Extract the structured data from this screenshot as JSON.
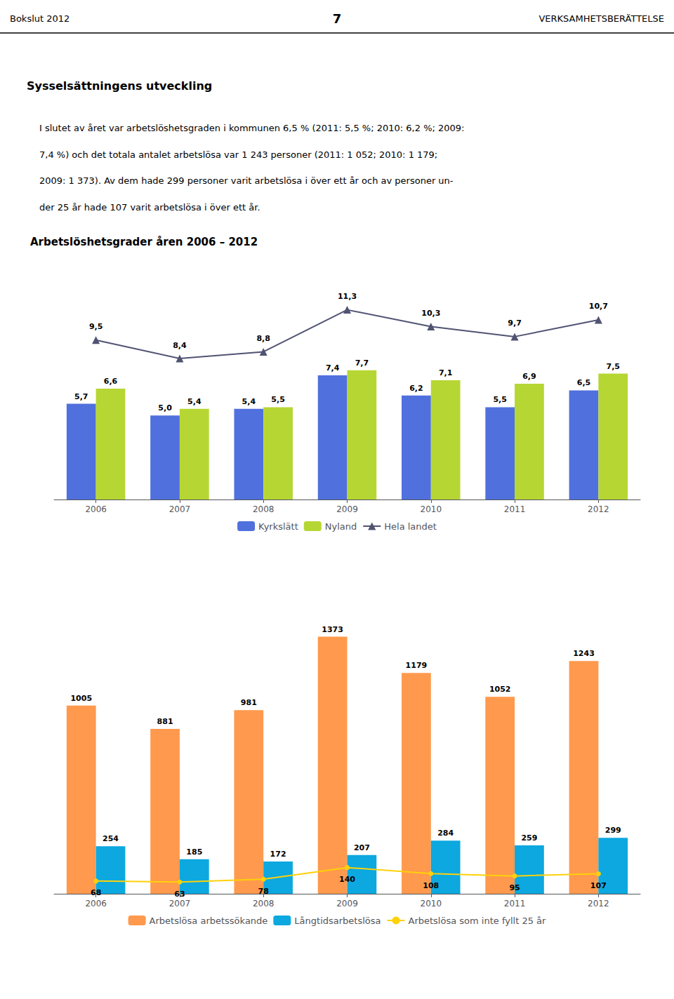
{
  "annotations": [
    "Bokslut 2012",
    "7",
    "VERKSAMHETSBERÄTTELSE",
    "Sysselsättningens utveckling",
    "I slutet av året var arbetslöshetsgraden i kommunen 6,5 % (2011: 5,5 %; 2010: 6,2 %; 2009:",
    "7,4 %) och det totala antalet arbetslösa var 1 243 personer (2011: 1 052; 2010: 1 179;",
    "2009: 1 373). Av dem hade 299 personer varit arbetslösa i över ett år och av personer un-",
    "der 25 år hade 107 varit arbetslösa i över ett år."
  ],
  "chart_data": [
    {
      "type": "bar",
      "title": "Arbetslöshetsgrader åren 2006 – 2012",
      "categories": [
        "2006",
        "2007",
        "2008",
        "2009",
        "2010",
        "2011",
        "2012"
      ],
      "series": [
        {
          "name": "Kyrkslätt",
          "type": "bar",
          "values": [
            5.7,
            5.0,
            5.4,
            7.4,
            6.2,
            5.5,
            6.5
          ],
          "value_labels": [
            "5,7",
            "5,0",
            "5,4",
            "7,4",
            "6,2",
            "5,5",
            "6,5"
          ]
        },
        {
          "name": "Nyland",
          "type": "bar",
          "values": [
            6.6,
            5.4,
            5.5,
            7.7,
            7.1,
            6.9,
            7.5
          ],
          "value_labels": [
            "6,6",
            "5,4",
            "5,5",
            "7,7",
            "7,1",
            "6,9",
            "7,5"
          ]
        },
        {
          "name": "Hela landet",
          "type": "line",
          "marker": "triangle",
          "values": [
            9.5,
            8.4,
            8.8,
            11.3,
            10.3,
            9.7,
            10.7
          ],
          "value_labels": [
            "9,5",
            "8,4",
            "8,8",
            "11,3",
            "10,3",
            "9,7",
            "10,7"
          ]
        }
      ],
      "ylim": [
        0,
        14
      ],
      "data_labels": true,
      "tick_labels": "x",
      "grid": false,
      "legend": "bottom"
    },
    {
      "type": "bar",
      "categories": [
        "2006",
        "2007",
        "2008",
        "2009",
        "2010",
        "2011",
        "2012"
      ],
      "series": [
        {
          "name": "Arbetslösa arbetssökande",
          "type": "bar",
          "values": [
            1005,
            881,
            981,
            1373,
            1179,
            1052,
            1243
          ]
        },
        {
          "name": "Långtidsarbetslösa",
          "type": "bar",
          "values": [
            254,
            185,
            172,
            207,
            284,
            259,
            299
          ]
        },
        {
          "name": "Arbetslösa som inte fyllt 25 år",
          "type": "line",
          "marker": "circle",
          "values": [
            68,
            63,
            78,
            140,
            108,
            95,
            107
          ]
        }
      ],
      "ylim": [
        0,
        1600
      ],
      "data_labels": true,
      "tick_labels": "x",
      "grid": false,
      "legend": "bottom"
    }
  ]
}
